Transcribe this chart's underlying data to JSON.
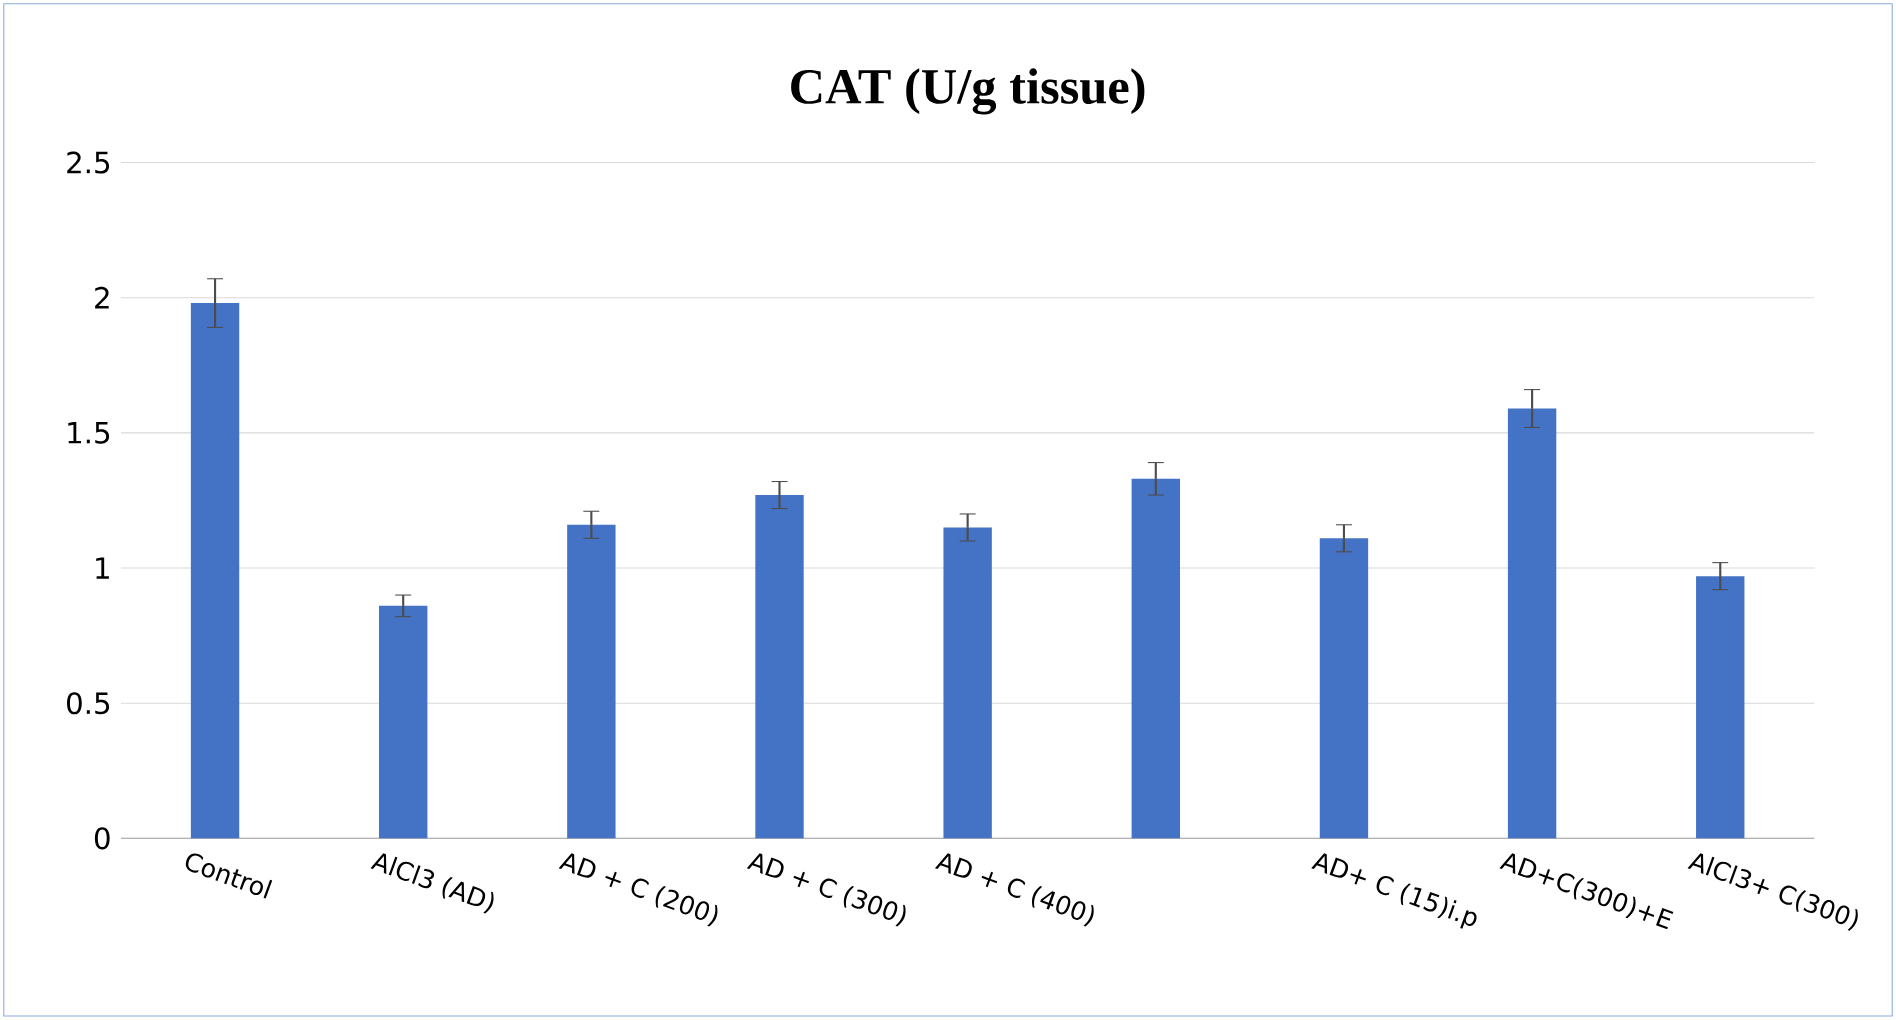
{
  "chart_data": {
    "type": "bar",
    "title": "CAT (U/g tissue)",
    "categories": [
      "Control",
      "AlCl3 (AD)",
      "AD + C (200)",
      "AD + C (300)",
      "AD + C (400)",
      null,
      "AD+ C (15)i.p",
      "AD+C(300)+E",
      "AlCl3+ C(300)"
    ],
    "values": [
      1.98,
      0.86,
      1.16,
      1.27,
      1.15,
      1.33,
      1.11,
      1.59,
      0.97
    ],
    "errors": [
      0.09,
      0.04,
      0.05,
      0.05,
      0.05,
      0.06,
      0.05,
      0.07,
      0.05
    ],
    "color": "#4472c4",
    "ylim": [
      0,
      2.5
    ],
    "yticks": [
      0,
      0.5,
      1,
      1.5,
      2,
      2.5
    ],
    "grid": "y"
  }
}
